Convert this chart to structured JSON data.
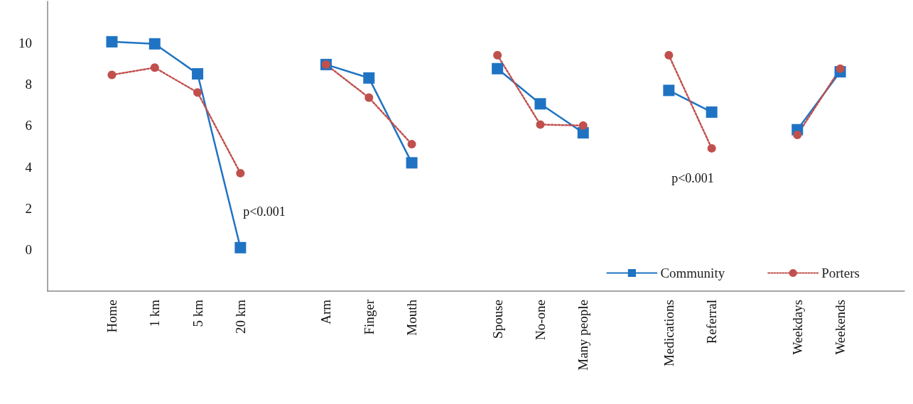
{
  "chart_data": {
    "type": "line",
    "categories": [
      null,
      "Home",
      "1 km",
      "5 km",
      "20 km",
      null,
      "Arm",
      "Finger",
      "Mouth",
      null,
      "Spouse",
      "No-one",
      "Many people",
      null,
      "Medications",
      "Referral",
      null,
      "Weekdays",
      "Weekends",
      null
    ],
    "series": [
      {
        "name": "Community",
        "color": "#1f73c2",
        "marker": "square",
        "line_style": "solid",
        "values": [
          null,
          10.05,
          9.95,
          8.5,
          0.1,
          null,
          8.95,
          8.3,
          4.2,
          null,
          8.75,
          7.05,
          5.65,
          null,
          7.7,
          6.65,
          null,
          5.8,
          8.6,
          null
        ]
      },
      {
        "name": "Porters",
        "color": "#c0504d",
        "marker": "circle",
        "line_style": "dotted",
        "values": [
          null,
          8.45,
          8.8,
          7.6,
          3.7,
          null,
          8.95,
          7.35,
          5.1,
          null,
          9.4,
          6.05,
          6.0,
          null,
          9.4,
          4.9,
          null,
          5.55,
          8.75,
          null
        ]
      }
    ],
    "ylim": [
      -2,
      12
    ],
    "yticks": [
      0,
      2,
      4,
      6,
      8,
      10
    ],
    "grid": false,
    "legend": "bottom right",
    "annotations": [
      "p<0.001",
      "p<0.001"
    ]
  }
}
